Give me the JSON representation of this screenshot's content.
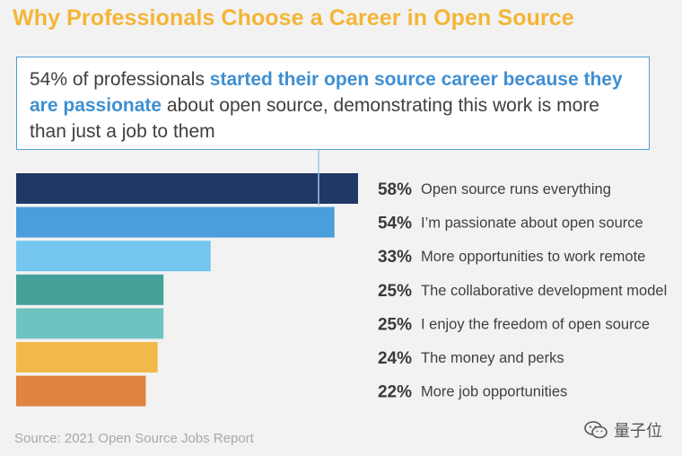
{
  "title": "Why Professionals Choose a Career in Open Source",
  "callout": {
    "pre": "54% of professionals ",
    "highlight": "started their open source career because they are passionate",
    "post": " about open source, demonstrating this work is more than just a job to them"
  },
  "source": "Source: 2021 Open Source Jobs Report",
  "watermark": {
    "text": "量子位",
    "icon": "wechat-logo-icon"
  },
  "chart_data": {
    "type": "bar",
    "orientation": "horizontal",
    "categories": [
      "Open source runs everything",
      "I’m passionate about open source",
      "More opportunities to work remote",
      "The collaborative development model",
      "I enjoy the freedom of open source",
      "The money and perks",
      "More job opportunities"
    ],
    "values": [
      58,
      54,
      33,
      25,
      25,
      24,
      22
    ],
    "value_labels": [
      "58%",
      "54%",
      "33%",
      "25%",
      "25%",
      "24%",
      "22%"
    ],
    "colors": [
      "#1f3864",
      "#4a9edb",
      "#74c6ee",
      "#45a29a",
      "#6ec3c0",
      "#f2b84a",
      "#e08440"
    ],
    "xlim": [
      0,
      58
    ],
    "grid": false
  }
}
